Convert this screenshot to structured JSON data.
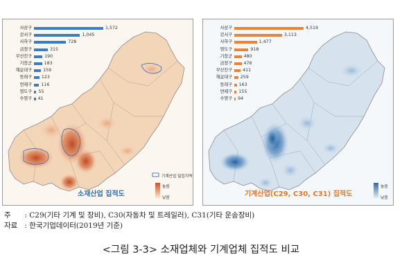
{
  "figure": {
    "left_map": {
      "title": "소재산업 집적도",
      "bars": [
        {
          "label": "사상구",
          "value": "1,572",
          "v": 1572
        },
        {
          "label": "강서구",
          "value": "1,045",
          "v": 1045
        },
        {
          "label": "사하구",
          "value": "728",
          "v": 728
        },
        {
          "label": "금정구",
          "value": "315",
          "v": 315
        },
        {
          "label": "부산진구",
          "value": "190",
          "v": 190
        },
        {
          "label": "기장군",
          "value": "183",
          "v": 183
        },
        {
          "label": "해운대구",
          "value": "159",
          "v": 159
        },
        {
          "label": "동래구",
          "value": "123",
          "v": 123
        },
        {
          "label": "연제구",
          "value": "116",
          "v": 116
        },
        {
          "label": "영도구",
          "value": "55",
          "v": 55
        },
        {
          "label": "수영구",
          "value": "41",
          "v": 41
        }
      ],
      "legend": {
        "area_label": "기계산업 밀집지역",
        "high": "높음",
        "low": "낮음",
        "high_color": "#c1562a",
        "low_color": "#fbe6d3"
      }
    },
    "right_map": {
      "title": "기계산업(C29, C30, C31) 집적도",
      "bars": [
        {
          "label": "사상구",
          "value": "4,519",
          "v": 4519
        },
        {
          "label": "강서구",
          "value": "3,113",
          "v": 3113
        },
        {
          "label": "사하구",
          "value": "1,477",
          "v": 1477
        },
        {
          "label": "영도구",
          "value": "918",
          "v": 918
        },
        {
          "label": "기장군",
          "value": "480",
          "v": 480
        },
        {
          "label": "금정구",
          "value": "476",
          "v": 476
        },
        {
          "label": "부산진구",
          "value": "411",
          "v": 411
        },
        {
          "label": "해운대구",
          "value": "259",
          "v": 259
        },
        {
          "label": "동래구",
          "value": "163",
          "v": 163
        },
        {
          "label": "연제구",
          "value": "155",
          "v": 155
        },
        {
          "label": "수영구",
          "value": "94",
          "v": 94
        }
      ],
      "legend": {
        "high": "높음",
        "low": "낮음",
        "high_color": "#2f6aa8",
        "low_color": "#e3edf5"
      }
    }
  },
  "notes": [
    {
      "key": "주",
      "sep": ":",
      "text": "C29(기타 기계 및 장비), C30(자동차 및 트레일러), C31(기타 운송장비)"
    },
    {
      "key": "자료",
      "sep": ":",
      "text": "한국기업데이터(2019년 기준)"
    }
  ],
  "caption": "<그림 3-3> 소재업체와 기계업체 집적도 비교"
}
